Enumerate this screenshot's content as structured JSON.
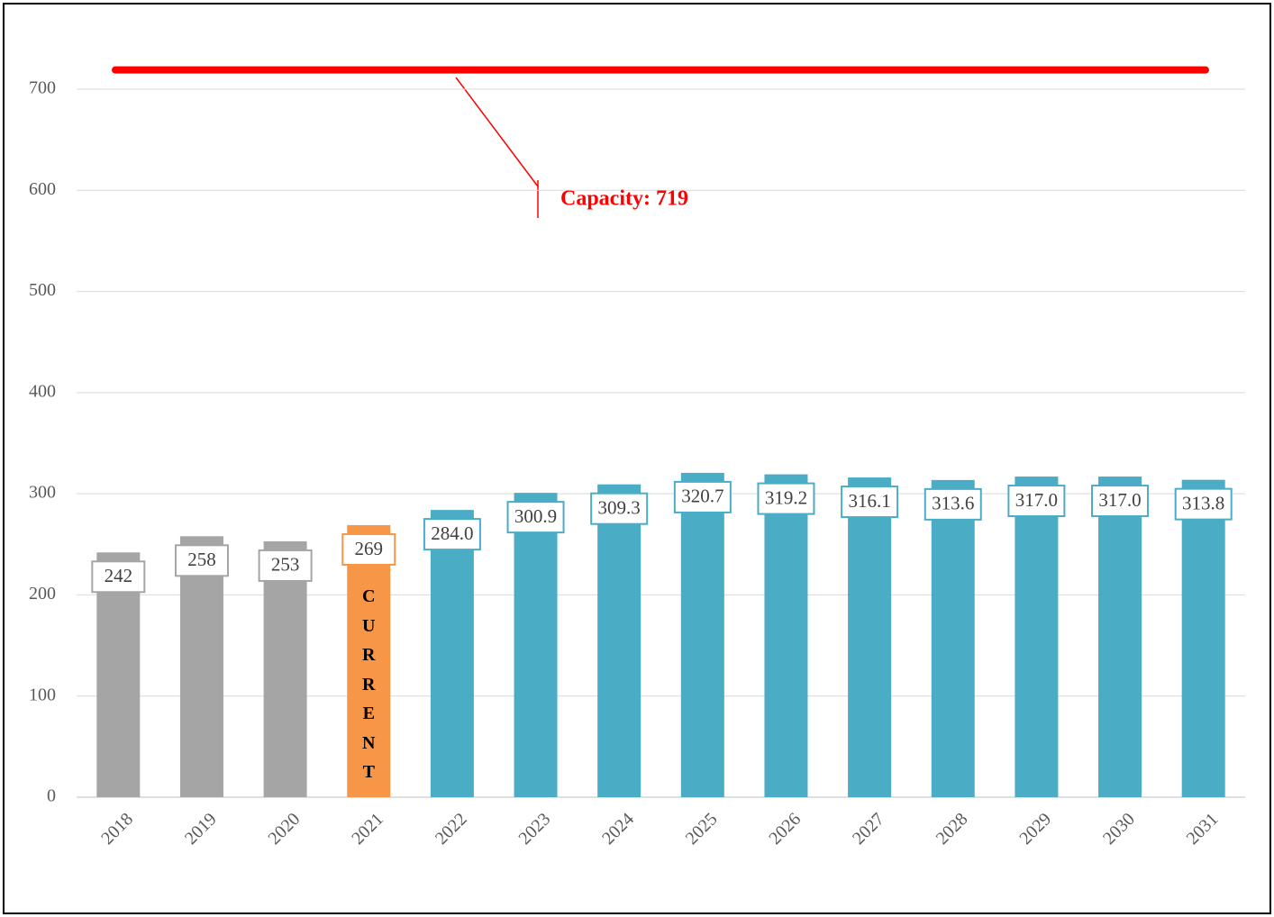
{
  "chart_data": {
    "type": "bar",
    "categories": [
      "2018",
      "2019",
      "2020",
      "2021",
      "2022",
      "2023",
      "2024",
      "2025",
      "2026",
      "2027",
      "2028",
      "2029",
      "2030",
      "2031"
    ],
    "values": [
      242,
      258,
      253,
      269,
      284.0,
      300.9,
      309.3,
      320.7,
      319.2,
      316.1,
      313.6,
      317.0,
      317.0,
      313.8
    ],
    "value_labels": [
      "242",
      "258",
      "253",
      "269",
      "284.0",
      "300.9",
      "309.3",
      "320.7",
      "319.2",
      "316.1",
      "313.6",
      "317.0",
      "317.0",
      "313.8"
    ],
    "colors": [
      "#a5a5a5",
      "#a5a5a5",
      "#a5a5a5",
      "#f79646",
      "#4bacc6",
      "#4bacc6",
      "#4bacc6",
      "#4bacc6",
      "#4bacc6",
      "#4bacc6",
      "#4bacc6",
      "#4bacc6",
      "#4bacc6",
      "#4bacc6"
    ],
    "ylim": [
      0,
      700
    ],
    "yticks": [
      0,
      100,
      200,
      300,
      400,
      500,
      600,
      700
    ],
    "grid": true,
    "reference_line": {
      "value": 719,
      "label": "Capacity: 719",
      "color": "#ff0000"
    },
    "bar_annotation": {
      "category_index": 3,
      "text": "CURRENT"
    }
  }
}
